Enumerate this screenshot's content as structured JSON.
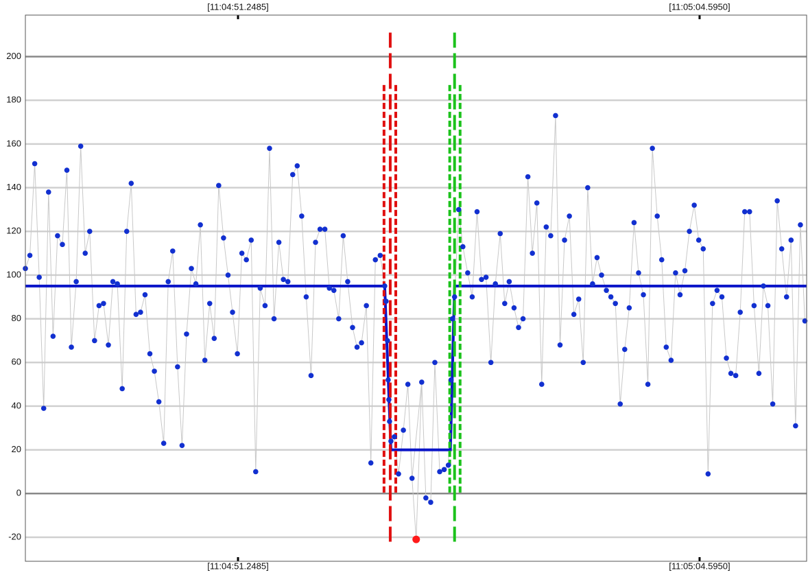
{
  "chart_data": {
    "type": "scatter",
    "xlim": [
      45.1,
      67.69
    ],
    "xticks": [
      {
        "value": 51.2485,
        "label": "[11:04:51.2485]"
      },
      {
        "value": 64.595,
        "label": "[11:05:04.5950]"
      }
    ],
    "ylim": [
      -31,
      219
    ],
    "yticks": [
      -20,
      0,
      20,
      40,
      60,
      80,
      100,
      120,
      140,
      160,
      180,
      200
    ],
    "grid": true,
    "series": [
      {
        "color": "#1230d0",
        "line_color": "#c8c8c8",
        "x": [
          45.1,
          45.23,
          45.37,
          45.5,
          45.63,
          45.77,
          45.9,
          46.03,
          46.17,
          46.3,
          46.43,
          46.57,
          46.7,
          46.83,
          46.96,
          47.1,
          47.23,
          47.36,
          47.5,
          47.63,
          47.76,
          47.9,
          48.03,
          48.16,
          48.3,
          48.43,
          48.56,
          48.7,
          48.83,
          48.96,
          49.1,
          49.23,
          49.36,
          49.5,
          49.63,
          49.76,
          49.9,
          50.03,
          50.16,
          50.29,
          50.43,
          50.56,
          50.69,
          50.83,
          50.96,
          51.09,
          51.23,
          51.36,
          51.49,
          51.63,
          51.76,
          51.89,
          52.03,
          52.16,
          52.29,
          52.43,
          52.56,
          52.69,
          52.83,
          52.96,
          53.09,
          53.22,
          53.36,
          53.49,
          53.62,
          53.76,
          53.89,
          54.02,
          54.16,
          54.29,
          54.42,
          54.56,
          54.69,
          54.82,
          54.96,
          55.09,
          55.22,
          55.36,
          55.49,
          55.53,
          55.57,
          55.59,
          55.61,
          55.63,
          55.67,
          55.77,
          55.89,
          56.03,
          56.16,
          56.28,
          56.56,
          56.68,
          56.82,
          56.94,
          57.08,
          57.21,
          57.33,
          57.41,
          57.45,
          57.51,
          57.63,
          57.75,
          57.89,
          58.02,
          58.16,
          58.29,
          58.42,
          58.56,
          58.69,
          58.83,
          58.96,
          59.09,
          59.23,
          59.36,
          59.49,
          59.63,
          59.76,
          59.89,
          60.03,
          60.16,
          60.29,
          60.43,
          60.56,
          60.69,
          60.83,
          60.96,
          61.1,
          61.23,
          61.36,
          61.5,
          61.63,
          61.76,
          61.9,
          62.03,
          62.16,
          62.3,
          62.43,
          62.56,
          62.7,
          62.83,
          62.97,
          63.1,
          63.23,
          63.37,
          63.5,
          63.63,
          63.77,
          63.9,
          64.03,
          64.17,
          64.3,
          64.44,
          64.57,
          64.7,
          64.84,
          64.97,
          65.1,
          65.24,
          65.37,
          65.5,
          65.64,
          65.77,
          65.9,
          66.04,
          66.17,
          66.31,
          66.44,
          66.57,
          66.71,
          66.84,
          66.97,
          67.11,
          67.24,
          67.37,
          67.51,
          67.64
        ],
        "values": [
          103,
          109,
          151,
          99,
          39,
          138,
          72,
          118,
          114,
          148,
          67,
          97,
          159,
          110,
          120,
          70,
          86,
          87,
          68,
          97,
          96,
          48,
          120,
          142,
          82,
          83,
          91,
          64,
          56,
          42,
          23,
          97,
          111,
          58,
          22,
          73,
          103,
          96,
          123,
          61,
          87,
          71,
          141,
          117,
          100,
          83,
          64,
          110,
          107,
          116,
          10,
          94,
          86,
          158,
          80,
          115,
          98,
          97,
          146,
          150,
          127,
          90,
          54,
          115,
          121,
          121,
          94,
          93,
          80,
          118,
          97,
          76,
          67,
          69,
          86,
          14,
          107,
          109,
          95,
          88,
          70,
          52,
          43,
          33,
          24,
          26,
          9,
          29,
          50,
          7,
          51,
          -2,
          -4,
          60,
          10,
          11,
          13,
          52,
          80,
          90,
          130,
          113,
          101,
          90,
          129,
          98,
          99,
          60,
          96,
          119,
          87,
          97,
          85,
          76,
          80,
          145,
          110,
          133,
          50,
          122,
          118,
          173,
          68,
          116,
          127,
          82,
          89,
          60,
          140,
          96,
          108,
          100,
          93,
          90,
          87,
          41,
          66,
          85,
          124,
          101,
          91,
          50,
          158,
          127,
          107,
          67,
          61,
          101,
          91,
          102,
          120,
          132,
          116,
          112,
          9,
          87,
          93,
          90,
          62,
          55,
          54,
          83,
          129,
          129,
          86,
          55,
          95,
          86,
          41,
          134,
          112,
          90,
          116,
          31,
          123,
          79
        ]
      }
    ],
    "outlier": {
      "x": 56.4,
      "y": -21,
      "color": "#ff1a1a"
    },
    "model": {
      "color": "#0a14c8",
      "x": [
        45.1,
        55.49,
        55.67,
        57.39,
        57.51,
        67.69
      ],
      "y": [
        95,
        95,
        20,
        20,
        95,
        95
      ]
    },
    "markers": [
      {
        "x": 55.65,
        "from": -23,
        "to": 211,
        "color": "#e01010",
        "style": "long"
      },
      {
        "x": 55.47,
        "from": 0,
        "to": 187,
        "color": "#e01010",
        "style": "short"
      },
      {
        "x": 55.81,
        "from": 0,
        "to": 187,
        "color": "#e01010",
        "style": "short"
      },
      {
        "x": 57.51,
        "from": -23,
        "to": 211,
        "color": "#1cc21c",
        "style": "long"
      },
      {
        "x": 57.37,
        "from": 0,
        "to": 187,
        "color": "#1cc21c",
        "style": "short"
      },
      {
        "x": 57.67,
        "from": 0,
        "to": 187,
        "color": "#1cc21c",
        "style": "short"
      }
    ]
  }
}
